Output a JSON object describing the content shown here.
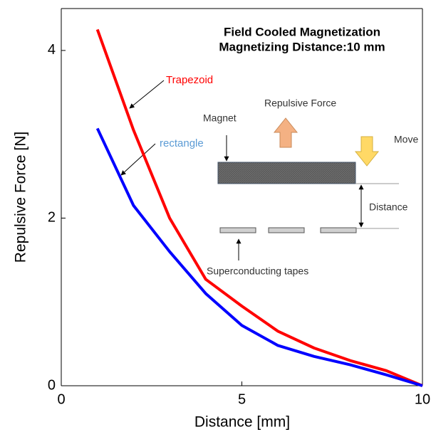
{
  "chart_data": {
    "type": "line",
    "title": "Field Cooled Magnetization",
    "subtitle": "Magnetizing Distance:10 mm",
    "x_label": "Distance [mm]",
    "y_label": "Repulsive Force [N]",
    "x": [
      1,
      2,
      3,
      4,
      5,
      6,
      7,
      8,
      9,
      10
    ],
    "series": [
      {
        "name": "Trapezoid",
        "color": "#ff0000",
        "values": [
          4.25,
          3.05,
          2.0,
          1.27,
          0.95,
          0.65,
          0.45,
          0.3,
          0.18,
          0
        ]
      },
      {
        "name": "rectangle",
        "color": "#0000ff",
        "values": [
          3.07,
          2.15,
          1.6,
          1.1,
          0.72,
          0.48,
          0.35,
          0.25,
          0.13,
          0
        ]
      }
    ],
    "xlim": [
      0,
      10
    ],
    "xticks": [
      0,
      5,
      10
    ],
    "ylim": [
      0,
      4.5
    ],
    "yticks": [
      0,
      2,
      4
    ],
    "diagram": {
      "magnet": "Magnet",
      "force": "Repulsive Force",
      "move": "Move",
      "distance": "Distance",
      "tapes": "Superconducting tapes"
    }
  }
}
